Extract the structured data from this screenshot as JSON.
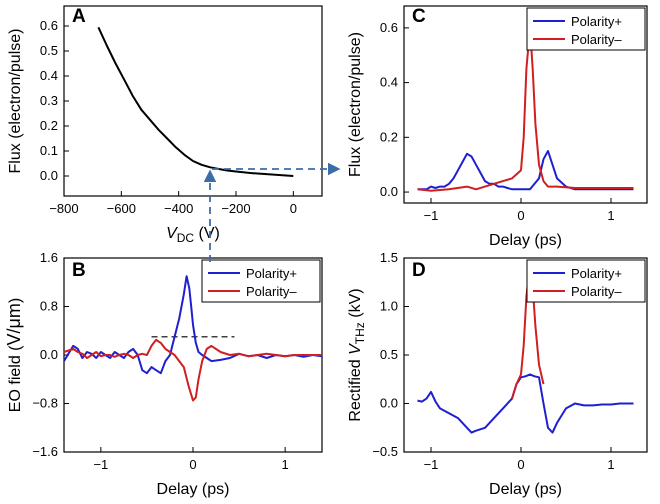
{
  "chart_data": [
    {
      "id": "A",
      "panel_label": "A",
      "type": "line",
      "xlabel_main": "V",
      "xlabel_sub": "DC",
      "xlabel_unit": " (V)",
      "ylabel": "Flux (electron/pulse)",
      "xlim": [
        -800,
        100
      ],
      "ylim": [
        -0.08,
        0.68
      ],
      "xticks": [
        -800,
        -600,
        -400,
        -200,
        0
      ],
      "yticks": [
        0.0,
        0.1,
        0.2,
        0.3,
        0.4,
        0.5,
        0.6
      ],
      "series": [
        {
          "color": "#000000",
          "x": [
            -680,
            -650,
            -620,
            -590,
            -560,
            -530,
            -500,
            -470,
            -440,
            -410,
            -380,
            -350,
            -320,
            -290,
            -260,
            -230,
            -200,
            -150,
            -100,
            -50,
            0
          ],
          "y": [
            0.595,
            0.52,
            0.45,
            0.385,
            0.32,
            0.265,
            0.225,
            0.185,
            0.15,
            0.115,
            0.085,
            0.06,
            0.045,
            0.035,
            0.028,
            0.022,
            0.018,
            0.012,
            0.008,
            0.004,
            0.0
          ]
        }
      ]
    },
    {
      "id": "B",
      "panel_label": "B",
      "type": "line",
      "xlabel": "Delay (ps)",
      "ylabel_main": "EO field (",
      "ylabel_unit": "V/μm",
      "ylabel_close": ")",
      "xlim": [
        -1.4,
        1.4
      ],
      "ylim": [
        -1.6,
        1.6
      ],
      "xticks": [
        -1,
        0,
        1
      ],
      "xtick_labels": [
        "−1",
        "0",
        "1"
      ],
      "yticks": [
        -1.6,
        -0.8,
        0.0,
        0.8,
        1.6
      ],
      "ytick_labels": [
        "−1.6",
        "−0.8",
        "0.0",
        "0.8",
        "1.6"
      ],
      "dashed_line": {
        "x": [
          -0.45,
          0.45
        ],
        "y": 0.3
      },
      "legend": {
        "position": "top-right"
      },
      "series": [
        {
          "name": "Polarity+",
          "color": "#1f1fd0",
          "x": [
            -1.4,
            -1.3,
            -1.25,
            -1.2,
            -1.15,
            -1.1,
            -1.05,
            -1.0,
            -0.95,
            -0.9,
            -0.85,
            -0.8,
            -0.75,
            -0.7,
            -0.65,
            -0.6,
            -0.55,
            -0.5,
            -0.45,
            -0.4,
            -0.35,
            -0.3,
            -0.25,
            -0.2,
            -0.15,
            -0.1,
            -0.07,
            -0.04,
            -0.02,
            0.0,
            0.03,
            0.06,
            0.1,
            0.15,
            0.2,
            0.3,
            0.4,
            0.5,
            0.6,
            0.7,
            0.8,
            0.9,
            1.0,
            1.1,
            1.2,
            1.3,
            1.4
          ],
          "y": [
            -0.1,
            0.15,
            0.1,
            -0.05,
            0.05,
            0.02,
            -0.05,
            0.05,
            0.0,
            -0.05,
            0.05,
            0.0,
            -0.05,
            0.05,
            0.1,
            0.0,
            -0.25,
            -0.3,
            -0.2,
            -0.25,
            -0.3,
            -0.1,
            0.0,
            0.3,
            0.6,
            1.0,
            1.3,
            1.1,
            0.8,
            0.5,
            0.2,
            0.05,
            0.0,
            -0.05,
            -0.1,
            -0.08,
            -0.05,
            0.02,
            -0.02,
            0.0,
            -0.05,
            0.0,
            -0.02,
            0.0,
            -0.03,
            0.0,
            -0.02
          ]
        },
        {
          "name": "Polarity–",
          "color": "#d01f1f",
          "x": [
            -1.4,
            -1.3,
            -1.25,
            -1.2,
            -1.15,
            -1.1,
            -1.05,
            -1.0,
            -0.95,
            -0.9,
            -0.85,
            -0.8,
            -0.75,
            -0.7,
            -0.65,
            -0.6,
            -0.55,
            -0.5,
            -0.45,
            -0.4,
            -0.35,
            -0.3,
            -0.25,
            -0.2,
            -0.15,
            -0.1,
            -0.05,
            0.0,
            0.03,
            0.06,
            0.1,
            0.15,
            0.2,
            0.3,
            0.4,
            0.5,
            0.6,
            0.7,
            0.8,
            0.9,
            1.0,
            1.1,
            1.2,
            1.3,
            1.4
          ],
          "y": [
            0.05,
            0.1,
            0.05,
            0.02,
            -0.05,
            0.0,
            0.05,
            -0.02,
            0.0,
            0.0,
            -0.03,
            0.0,
            0.02,
            0.0,
            -0.05,
            0.0,
            0.02,
            0.0,
            0.15,
            0.25,
            0.2,
            0.1,
            0.05,
            0.0,
            -0.1,
            -0.2,
            -0.5,
            -0.75,
            -0.7,
            -0.4,
            -0.1,
            0.1,
            0.15,
            0.05,
            0.0,
            0.02,
            -0.02,
            0.0,
            0.02,
            0.0,
            -0.02,
            0.0,
            0.0,
            0.0,
            0.0
          ]
        }
      ]
    },
    {
      "id": "C",
      "panel_label": "C",
      "type": "line",
      "xlabel": "Delay (ps)",
      "ylabel": "Flux (electron/pulse)",
      "xlim": [
        -1.3,
        1.4
      ],
      "ylim": [
        -0.04,
        0.68
      ],
      "xticks": [
        -1,
        0,
        1
      ],
      "xtick_labels": [
        "−1",
        "0",
        "1"
      ],
      "yticks": [
        0.0,
        0.2,
        0.4,
        0.6
      ],
      "ytick_labels": [
        "0.0",
        "0.2",
        "0.4",
        "0.6"
      ],
      "legend": {
        "position": "top-right"
      },
      "series": [
        {
          "name": "Polarity+",
          "color": "#1f1fd0",
          "x": [
            -1.15,
            -1.05,
            -1.0,
            -0.95,
            -0.9,
            -0.85,
            -0.8,
            -0.75,
            -0.7,
            -0.65,
            -0.6,
            -0.55,
            -0.5,
            -0.45,
            -0.4,
            -0.35,
            -0.3,
            -0.25,
            -0.2,
            -0.15,
            -0.1,
            -0.05,
            0.0,
            0.1,
            0.2,
            0.25,
            0.3,
            0.35,
            0.4,
            0.5,
            0.6,
            0.8,
            1.0,
            1.25
          ],
          "y": [
            0.01,
            0.01,
            0.02,
            0.015,
            0.02,
            0.02,
            0.03,
            0.05,
            0.08,
            0.11,
            0.14,
            0.13,
            0.1,
            0.07,
            0.04,
            0.03,
            0.03,
            0.02,
            0.02,
            0.015,
            0.01,
            0.01,
            0.01,
            0.01,
            0.05,
            0.12,
            0.15,
            0.1,
            0.05,
            0.02,
            0.01,
            0.01,
            0.01,
            0.01
          ]
        },
        {
          "name": "Polarity–",
          "color": "#d01f1f",
          "x": [
            -1.15,
            -1.0,
            -0.8,
            -0.6,
            -0.5,
            -0.4,
            -0.3,
            -0.2,
            -0.1,
            0.0,
            0.03,
            0.06,
            0.1,
            0.13,
            0.16,
            0.2,
            0.25,
            0.3,
            0.4,
            0.6,
            0.8,
            1.0,
            1.25
          ],
          "y": [
            0.01,
            0.005,
            0.01,
            0.02,
            0.01,
            0.02,
            0.03,
            0.04,
            0.05,
            0.08,
            0.2,
            0.45,
            0.6,
            0.45,
            0.25,
            0.1,
            0.04,
            0.02,
            0.02,
            0.015,
            0.015,
            0.015,
            0.015
          ]
        }
      ]
    },
    {
      "id": "D",
      "panel_label": "D",
      "type": "line",
      "xlabel": "Delay (ps)",
      "ylabel_main": "Rectified ",
      "ylabel_italic": "V",
      "ylabel_sub": "THz",
      "ylabel_unit": " (kV)",
      "xlim": [
        -1.3,
        1.4
      ],
      "ylim": [
        -0.5,
        1.5
      ],
      "xticks": [
        -1,
        0,
        1
      ],
      "xtick_labels": [
        "−1",
        "0",
        "1"
      ],
      "yticks": [
        -0.5,
        0.0,
        0.5,
        1.0,
        1.5
      ],
      "ytick_labels": [
        "−0.5",
        "0.0",
        "0.5",
        "1.0",
        "1.5"
      ],
      "legend": {
        "position": "top-right"
      },
      "series": [
        {
          "name": "Polarity+",
          "color": "#1f1fd0",
          "x": [
            -1.15,
            -1.1,
            -1.05,
            -1.0,
            -0.95,
            -0.9,
            -0.8,
            -0.7,
            -0.6,
            -0.55,
            -0.5,
            -0.4,
            -0.3,
            -0.2,
            -0.1,
            -0.05,
            0.0,
            0.05,
            0.1,
            0.15,
            0.2,
            0.25,
            0.3,
            0.35,
            0.4,
            0.5,
            0.6,
            0.7,
            0.8,
            0.9,
            1.0,
            1.1,
            1.25
          ],
          "y": [
            0.03,
            0.02,
            0.05,
            0.12,
            0.02,
            -0.05,
            -0.1,
            -0.15,
            -0.25,
            -0.3,
            -0.28,
            -0.25,
            -0.15,
            -0.05,
            0.05,
            0.2,
            0.27,
            0.28,
            0.3,
            0.28,
            0.27,
            0.0,
            -0.25,
            -0.3,
            -0.2,
            -0.05,
            0.0,
            -0.02,
            -0.02,
            -0.01,
            -0.01,
            0.0,
            0.0
          ]
        },
        {
          "name": "Polarity–",
          "color": "#d01f1f",
          "x": [
            -0.1,
            -0.05,
            0.0,
            0.03,
            0.06,
            0.1,
            0.13,
            0.16,
            0.2,
            0.25
          ],
          "y": [
            0.05,
            0.2,
            0.3,
            0.6,
            1.1,
            1.45,
            1.2,
            0.8,
            0.4,
            0.2
          ]
        }
      ]
    }
  ]
}
